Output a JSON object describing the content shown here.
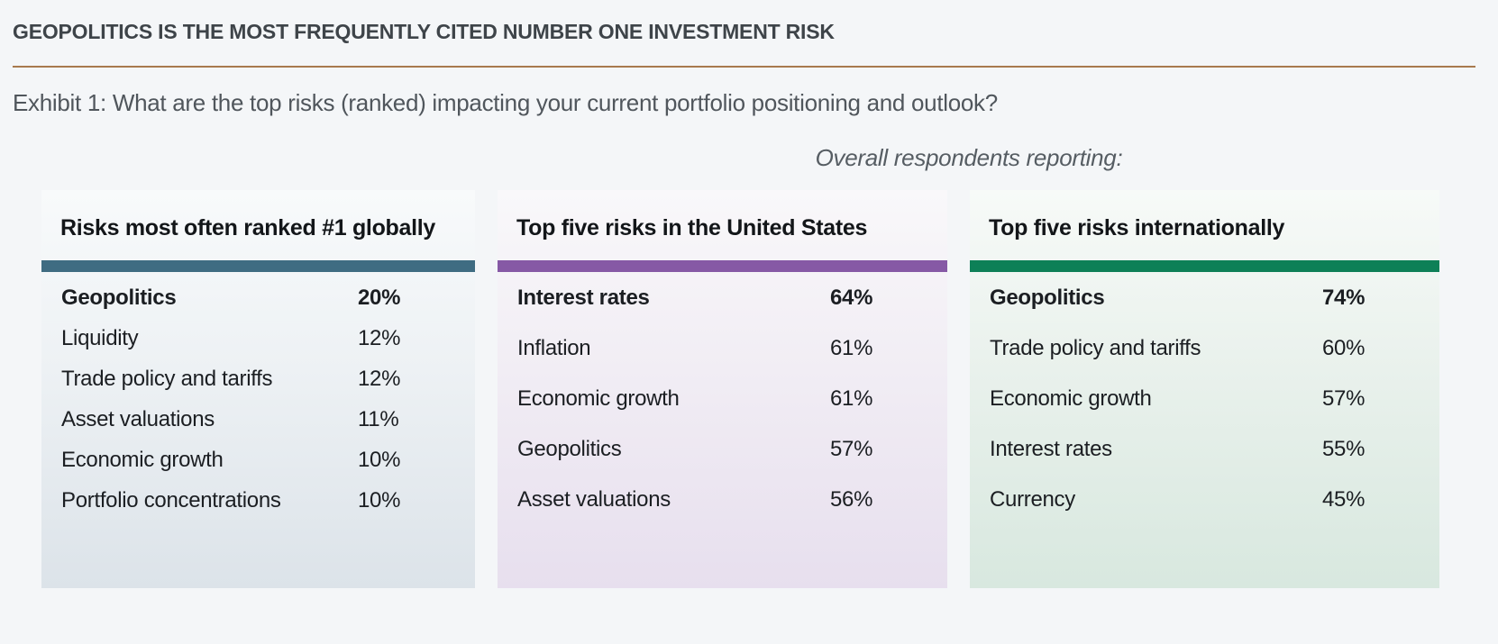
{
  "page": {
    "title": "GEOPOLITICS IS THE MOST FREQUENTLY CITED NUMBER ONE INVESTMENT RISK",
    "exhibit_caption": "Exhibit 1: What are the top risks (ranked) impacting your current portfolio positioning and outlook?",
    "respondents_note": "Overall respondents reporting:",
    "background_color": "#f4f6f8",
    "rule_color": "#a87a4e"
  },
  "chart_data": {
    "type": "table",
    "title": "Exhibit 1: What are the top risks (ranked) impacting your current portfolio positioning and outlook?",
    "note": "Overall respondents reporting:",
    "tables": [
      {
        "title": "Risks most often ranked #1 globally",
        "accent_color": "#3f6c82",
        "rows": [
          {
            "label": "Geopolitics",
            "value": "20%",
            "value_pct": 20,
            "emphasis": true
          },
          {
            "label": "Liquidity",
            "value": "12%",
            "value_pct": 12
          },
          {
            "label": "Trade policy and tariffs",
            "value": "12%",
            "value_pct": 12
          },
          {
            "label": "Asset valuations",
            "value": "11%",
            "value_pct": 11
          },
          {
            "label": "Economic growth",
            "value": "10%",
            "value_pct": 10
          },
          {
            "label": "Portfolio concentrations",
            "value": "10%",
            "value_pct": 10
          }
        ]
      },
      {
        "title": "Top five risks in the United States",
        "accent_color": "#8659a5",
        "rows": [
          {
            "label": "Interest rates",
            "value": "64%",
            "value_pct": 64,
            "emphasis": true
          },
          {
            "label": "Inflation",
            "value": "61%",
            "value_pct": 61
          },
          {
            "label": "Economic growth",
            "value": "61%",
            "value_pct": 61
          },
          {
            "label": "Geopolitics",
            "value": "57%",
            "value_pct": 57
          },
          {
            "label": "Asset valuations",
            "value": "56%",
            "value_pct": 56
          }
        ]
      },
      {
        "title": "Top five risks internationally",
        "accent_color": "#0d8057",
        "rows": [
          {
            "label": "Geopolitics",
            "value": "74%",
            "value_pct": 74,
            "emphasis": true
          },
          {
            "label": "Trade policy and tariffs",
            "value": "60%",
            "value_pct": 60
          },
          {
            "label": "Economic growth",
            "value": "57%",
            "value_pct": 57
          },
          {
            "label": "Interest rates",
            "value": "55%",
            "value_pct": 55
          },
          {
            "label": "Currency",
            "value": "45%",
            "value_pct": 45
          }
        ]
      }
    ]
  }
}
